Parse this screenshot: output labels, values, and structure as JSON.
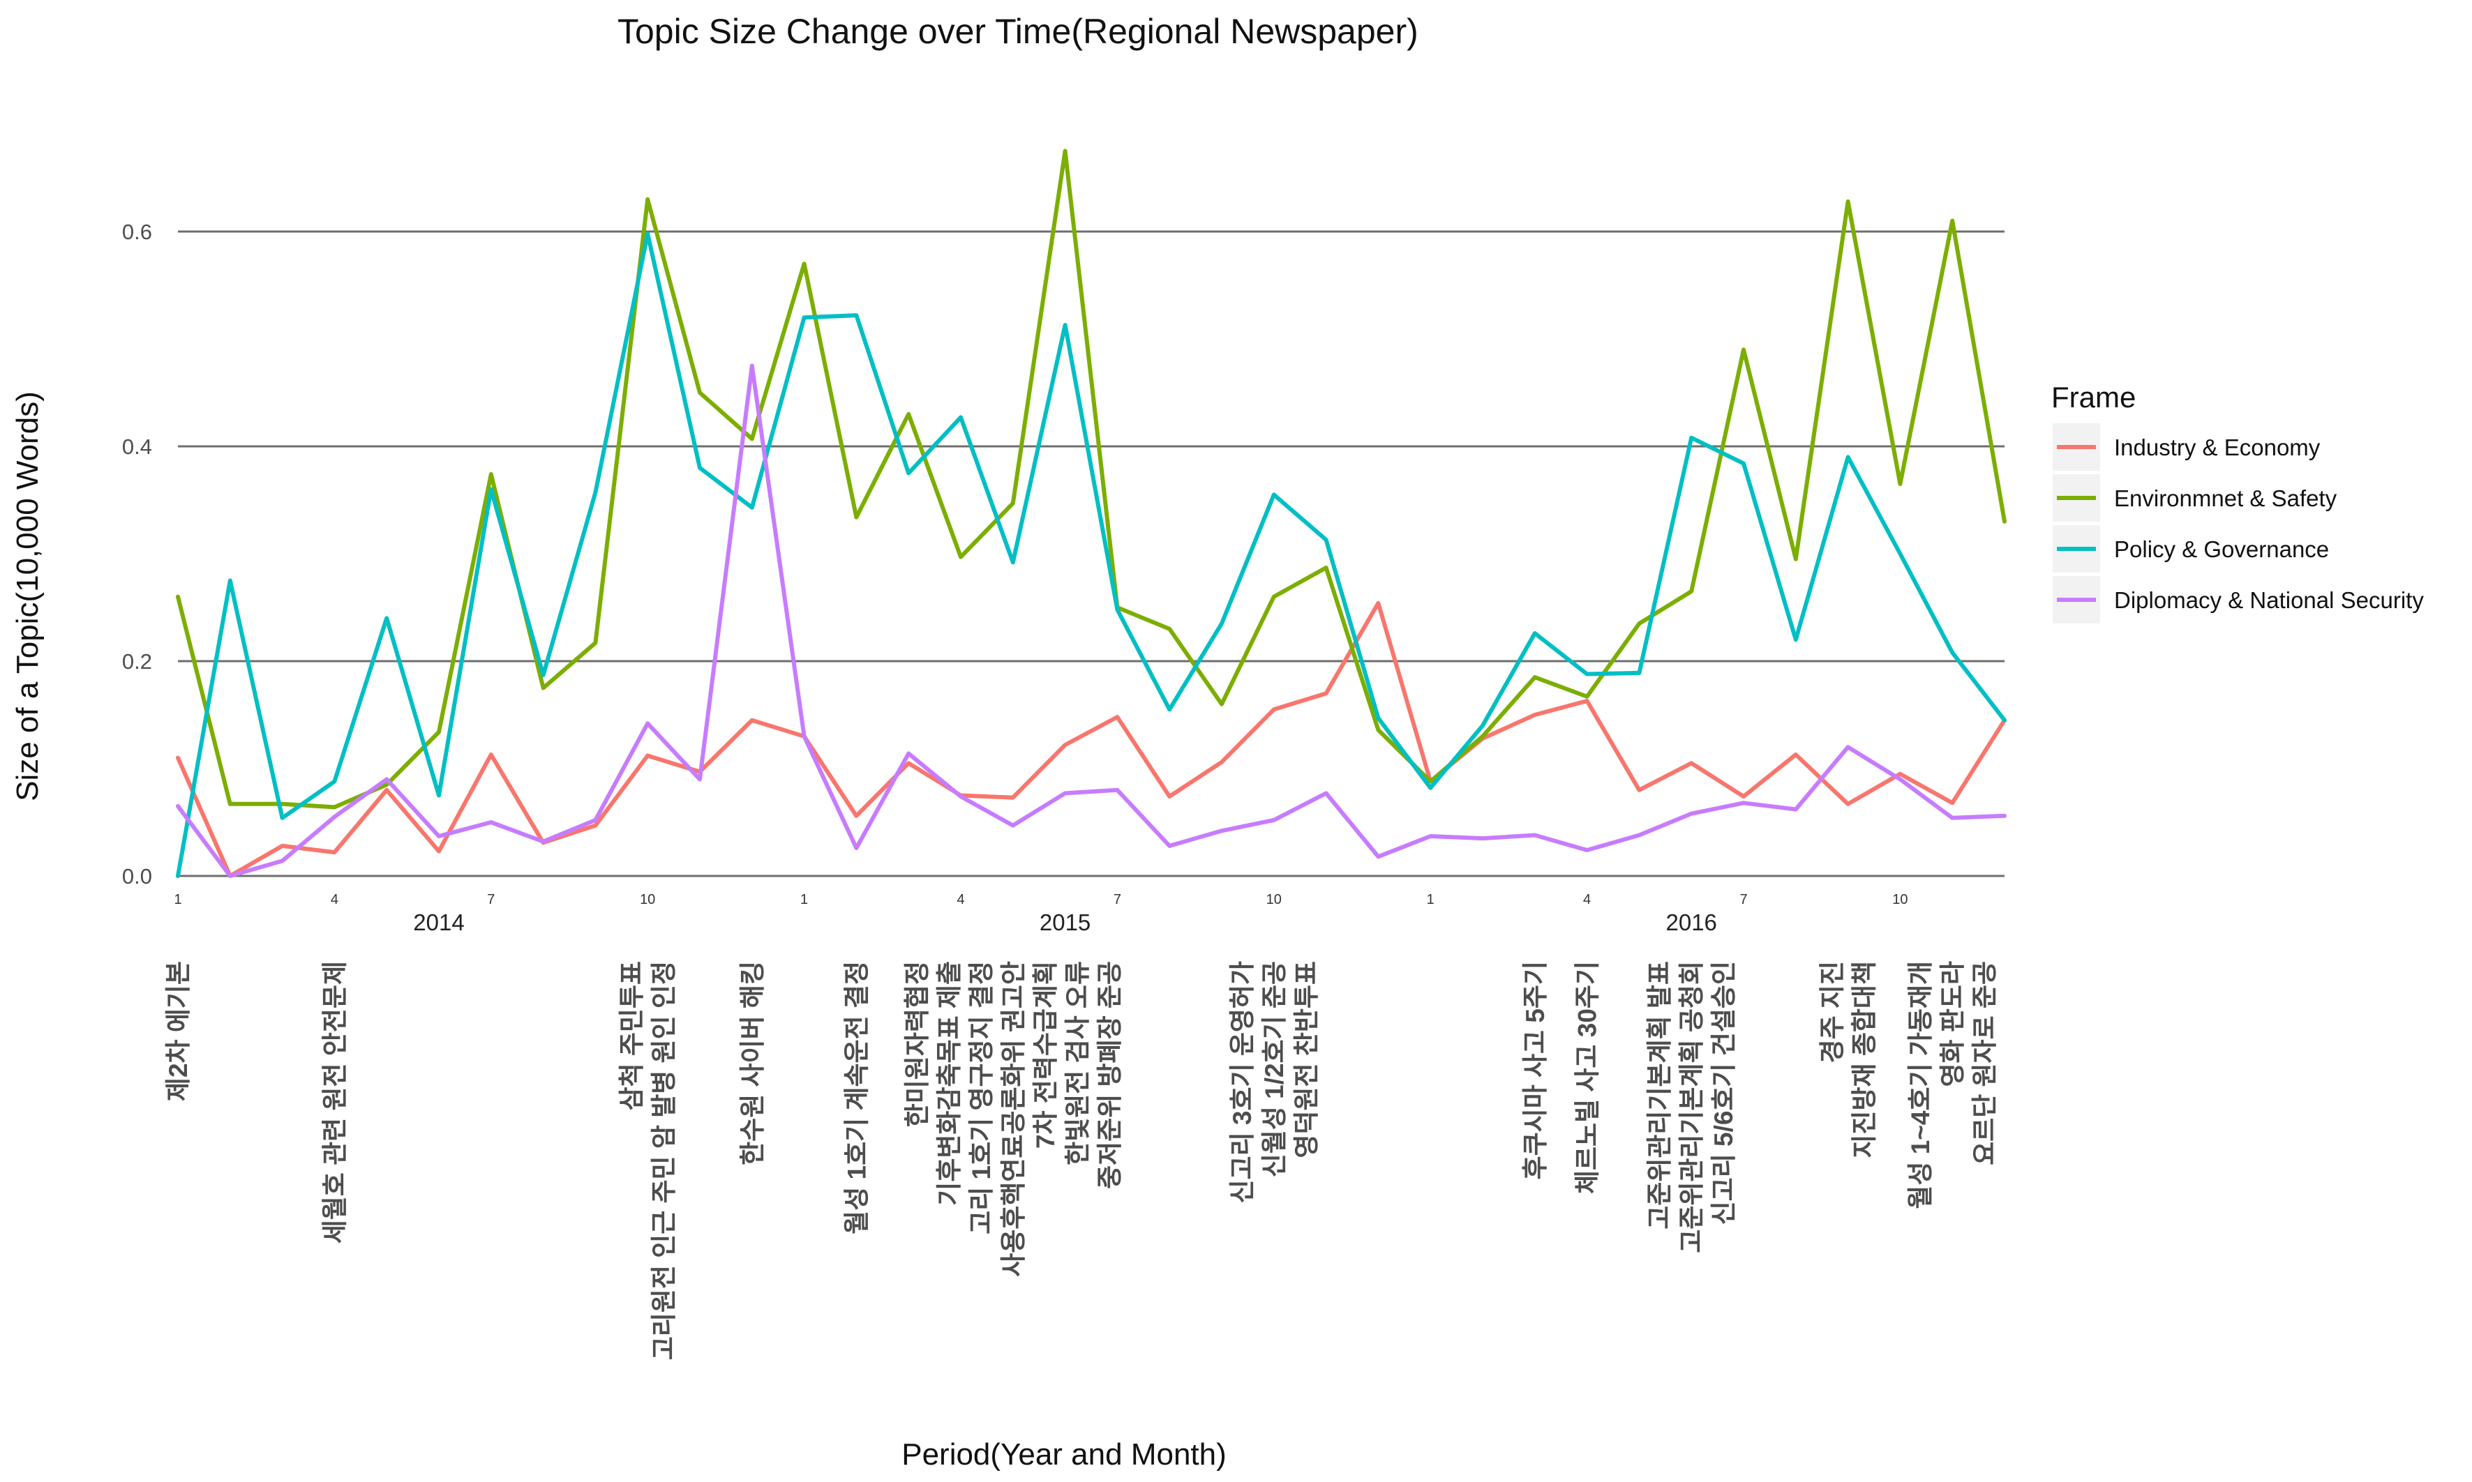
{
  "chart_data": {
    "type": "line",
    "title": "Topic Size Change over Time(Regional Newspaper)",
    "xlabel": "Period(Year and Month)",
    "ylabel": "Size of a Topic(10,000 Words)",
    "ylim": [
      0,
      0.68
    ],
    "yticks": [
      "0.0",
      "0.2",
      "0.4",
      "0.6"
    ],
    "grid": "horizontal",
    "month_ticks": [
      {
        "index": 0,
        "label": "1"
      },
      {
        "index": 3,
        "label": "4"
      },
      {
        "index": 6,
        "label": "7"
      },
      {
        "index": 9,
        "label": "10"
      },
      {
        "index": 12,
        "label": "1"
      },
      {
        "index": 15,
        "label": "4"
      },
      {
        "index": 18,
        "label": "7"
      },
      {
        "index": 21,
        "label": "10"
      },
      {
        "index": 24,
        "label": "1"
      },
      {
        "index": 27,
        "label": "4"
      },
      {
        "index": 30,
        "label": "7"
      },
      {
        "index": 33,
        "label": "10"
      }
    ],
    "years": [
      {
        "index": 5,
        "label": "2014"
      },
      {
        "index": 17,
        "label": "2015"
      },
      {
        "index": 29,
        "label": "2016"
      }
    ],
    "legend": {
      "title": "Frame",
      "position": "right"
    },
    "series": [
      {
        "name": "Industry & Economy",
        "color": "#F8766D",
        "values": [
          0.11,
          0.0,
          0.028,
          0.022,
          0.08,
          0.023,
          0.113,
          0.031,
          0.047,
          0.112,
          0.097,
          0.145,
          0.13,
          0.056,
          0.105,
          0.075,
          0.073,
          0.122,
          0.148,
          0.074,
          0.106,
          0.155,
          0.17,
          0.254,
          0.088,
          0.128,
          0.15,
          0.163,
          0.08,
          0.105,
          0.074,
          0.113,
          0.067,
          0.095,
          0.068,
          0.145
        ]
      },
      {
        "name": "Environmnet & Safety",
        "color": "#7CAE00",
        "values": [
          0.26,
          0.067,
          0.067,
          0.064,
          0.085,
          0.134,
          0.374,
          0.175,
          0.217,
          0.63,
          0.45,
          0.407,
          0.57,
          0.334,
          0.43,
          0.297,
          0.347,
          0.675,
          0.25,
          0.23,
          0.16,
          0.26,
          0.287,
          0.136,
          0.088,
          0.13,
          0.185,
          0.167,
          0.235,
          0.265,
          0.49,
          0.295,
          0.628,
          0.365,
          0.61,
          0.33
        ]
      },
      {
        "name": "Policy & Governance",
        "color": "#00BFC4",
        "values": [
          0.0,
          0.275,
          0.054,
          0.088,
          0.24,
          0.075,
          0.36,
          0.187,
          0.357,
          0.598,
          0.38,
          0.343,
          0.52,
          0.522,
          0.375,
          0.427,
          0.292,
          0.513,
          0.248,
          0.155,
          0.235,
          0.355,
          0.313,
          0.147,
          0.082,
          0.14,
          0.226,
          0.188,
          0.189,
          0.408,
          0.384,
          0.22,
          0.39,
          0.3,
          0.208,
          0.145
        ]
      },
      {
        "name": "Diplomacy & National Security",
        "color": "#C77CFF",
        "values": [
          0.065,
          0.0,
          0.014,
          0.055,
          0.09,
          0.037,
          0.05,
          0.032,
          0.052,
          0.142,
          0.09,
          0.475,
          0.13,
          0.026,
          0.114,
          0.074,
          0.047,
          0.077,
          0.08,
          0.028,
          0.042,
          0.052,
          0.077,
          0.018,
          0.037,
          0.035,
          0.038,
          0.024,
          0.038,
          0.058,
          0.068,
          0.062,
          0.12,
          0.09,
          0.054,
          0.056
        ]
      }
    ],
    "event_annotations": [
      {
        "index": 0,
        "lines": [
          "제2차 에기본"
        ]
      },
      {
        "index": 3,
        "lines": [
          "세월호 관련 원전 안전문제"
        ]
      },
      {
        "index": 9,
        "lines": [
          "삼척 주민투표",
          "고리원전 인근 주민 암 발병 원인 인정"
        ]
      },
      {
        "index": 11,
        "lines": [
          "한수원 사이버 해킹"
        ]
      },
      {
        "index": 13,
        "lines": [
          "월성 1호기 계속운전 결정"
        ]
      },
      {
        "index": 16,
        "lines": [
          "한미원자력협정",
          "기후변화감축목표 제출",
          "고리 1호기 영구정지 결정",
          "사용후핵연료공론화위 권고안",
          "7차 전력수급계획",
          "한빛원전 검사 오류",
          "중저준위 방폐장 준공"
        ]
      },
      {
        "index": 21,
        "lines": [
          "신고리 3호기 운영허가",
          "신월성 1/2호기 준공",
          "영덕원전 찬반투표"
        ]
      },
      {
        "index": 26,
        "lines": [
          "후쿠시마 사고 5주기"
        ]
      },
      {
        "index": 27,
        "lines": [
          "체르노빌 사고 30주기"
        ]
      },
      {
        "index": 29,
        "lines": [
          "고준위관리기본계획 발표",
          "고준위관리기본계획 공청회",
          "신고리 5/6호기 건설승인"
        ]
      },
      {
        "index": 32,
        "lines": [
          "경주 지진",
          "지진방재 종합대책"
        ]
      },
      {
        "index": 34,
        "lines": [
          "월성 1~4호기 가동재개",
          "영화 판도라",
          "요르단 원자로 준공"
        ]
      }
    ]
  }
}
